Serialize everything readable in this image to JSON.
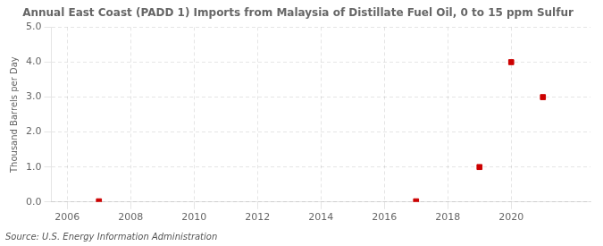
{
  "chart_data": {
    "type": "scatter",
    "title": "Annual East Coast (PADD 1) Imports from Malaysia of Distillate Fuel Oil, 0 to 15 ppm Sulfur",
    "ylabel": "Thousand Barrels per Day",
    "annotation": "Source: U.S. Energy Information Administration",
    "x": [
      2007,
      2017,
      2019,
      2020,
      2021
    ],
    "values": [
      0.02,
      0.02,
      1.0,
      4.0,
      3.0
    ],
    "color": "#cc0000",
    "marker": "square",
    "xlim": [
      2005.5,
      2022.5
    ],
    "xticks": [
      2006,
      2008,
      2010,
      2012,
      2014,
      2016,
      2018,
      2020
    ],
    "ylim": [
      0.0,
      5.0
    ],
    "yticks": [
      {
        "value": 0.0,
        "label": "0.0"
      },
      {
        "value": 1.0,
        "label": "1.0"
      },
      {
        "value": 2.0,
        "label": "2.0"
      },
      {
        "value": 3.0,
        "label": "3.0"
      },
      {
        "value": 4.0,
        "label": "4.0"
      },
      {
        "value": 5.0,
        "label": "5.0"
      }
    ],
    "grid": true
  }
}
